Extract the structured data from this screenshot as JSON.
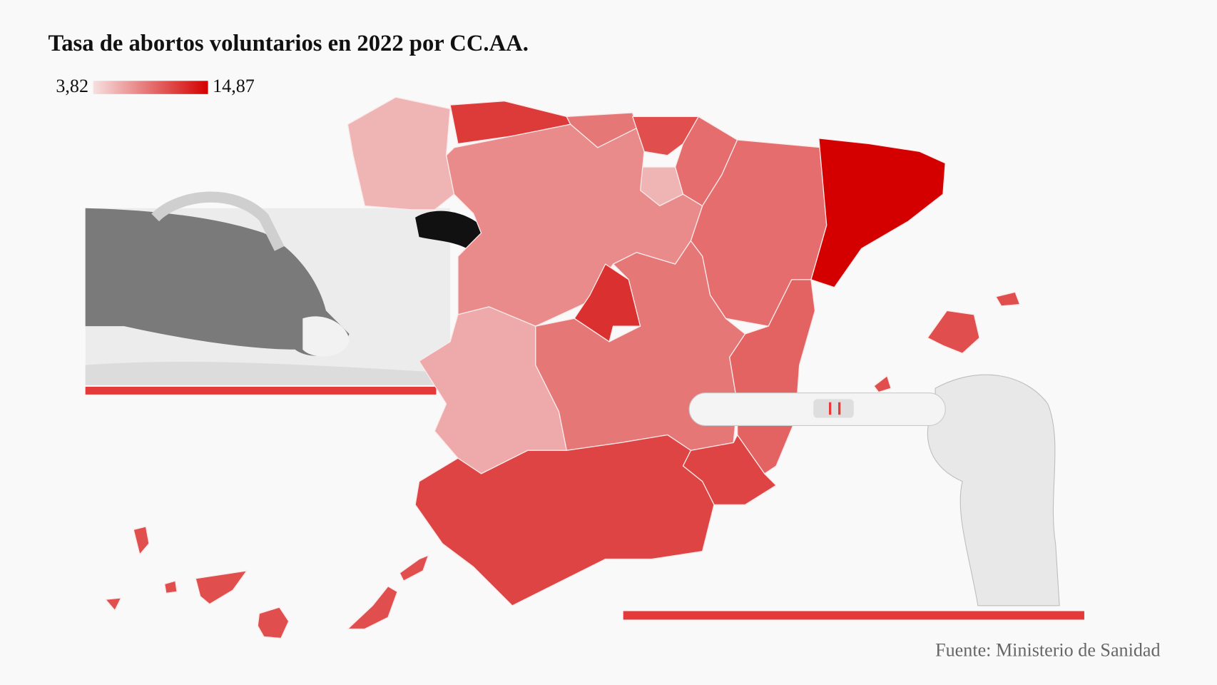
{
  "title": "Tasa de abortos voluntarios en 2022 por CC.AA.",
  "legend": {
    "min": {
      "value": 3.82,
      "label": "3,82"
    },
    "max": {
      "value": 14.87,
      "label": "14,87"
    }
  },
  "regions": {
    "values": [
      6.0,
      12.0,
      9.0,
      11.0,
      9.5,
      6.0,
      9.5,
      14.87,
      8.0,
      12.5,
      9.0,
      6.5,
      10.0,
      11.5,
      11.5,
      11.0,
      11.0
    ]
  },
  "source": "Fuente: Ministerio de Sanidad"
}
